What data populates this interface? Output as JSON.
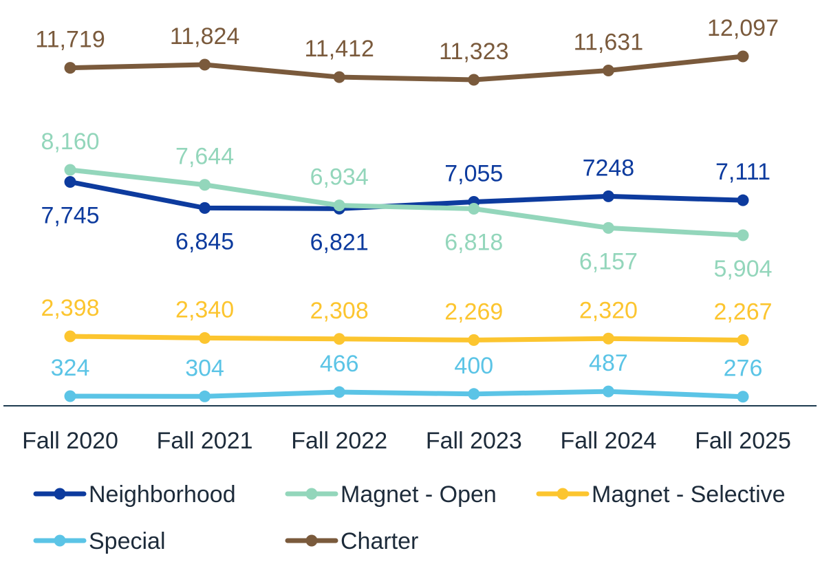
{
  "chart_data": {
    "type": "line",
    "categories": [
      "Fall 2020",
      "Fall 2021",
      "Fall 2022",
      "Fall 2023",
      "Fall 2024",
      "Fall 2025"
    ],
    "series": [
      {
        "name": "Neighborhood",
        "color": "#0d3b9e",
        "values": [
          7745,
          6845,
          6821,
          7055,
          7248,
          7111
        ],
        "labels": [
          "7,745",
          "6,845",
          "6,821",
          "7,055",
          "7248",
          "7,111"
        ],
        "label_pos": [
          "below",
          "below",
          "below",
          "above",
          "above",
          "above"
        ]
      },
      {
        "name": "Magnet - Open",
        "color": "#93d6bb",
        "values": [
          8160,
          7644,
          6934,
          6818,
          6157,
          5904
        ],
        "labels": [
          "8,160",
          "7,644",
          "6,934",
          "6,818",
          "6,157",
          "5,904"
        ],
        "label_pos": [
          "above",
          "above",
          "above",
          "below",
          "below",
          "below"
        ]
      },
      {
        "name": "Magnet - Selective",
        "color": "#fcc52f",
        "values": [
          2398,
          2340,
          2308,
          2269,
          2320,
          2267
        ],
        "labels": [
          "2,398",
          "2,340",
          "2,308",
          "2,269",
          "2,320",
          "2,267"
        ],
        "label_pos": [
          "above",
          "above",
          "above",
          "above",
          "above",
          "above"
        ]
      },
      {
        "name": "Special",
        "color": "#5bc4e6",
        "values": [
          324,
          304,
          466,
          400,
          487,
          276
        ],
        "labels": [
          "324",
          "304",
          "466",
          "400",
          "487",
          "276"
        ],
        "label_pos": [
          "above",
          "above",
          "above",
          "above",
          "above",
          "above"
        ]
      },
      {
        "name": "Charter",
        "color": "#7a5a3c",
        "values": [
          11719,
          11824,
          11412,
          11323,
          11631,
          12097
        ],
        "labels": [
          "11,719",
          "11,824",
          "11,412",
          "11,323",
          "11,631",
          "12,097"
        ],
        "label_pos": [
          "above",
          "above",
          "above",
          "above",
          "above",
          "above"
        ]
      }
    ],
    "legend": {
      "placement": "bottom",
      "rows": [
        [
          "Neighborhood",
          "Magnet - Open",
          "Magnet - Selective"
        ],
        [
          "Special",
          "Charter"
        ]
      ]
    },
    "grid": false,
    "axis_color": "#1d3a4f"
  }
}
